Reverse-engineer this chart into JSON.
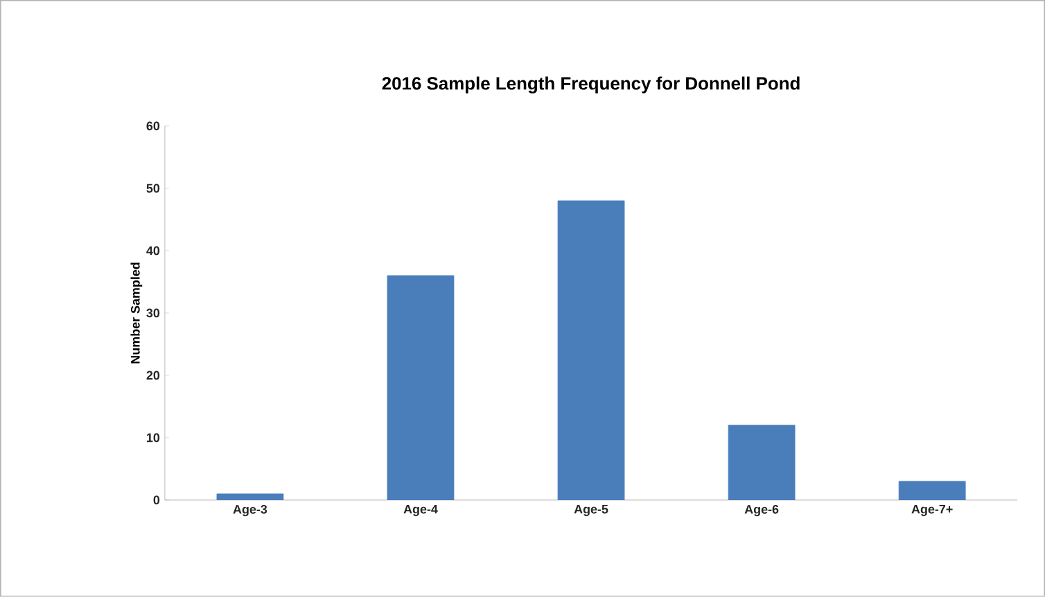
{
  "chart_data": {
    "type": "bar",
    "title": "2016 Sample Length Frequency for Donnell Pond",
    "ylabel": "Number Sampled",
    "categories": [
      "Age-3",
      "Age-4",
      "Age-5",
      "Age-6",
      "Age-7+"
    ],
    "values": [
      1,
      36,
      48,
      12,
      3
    ],
    "color": "#4a7ebb",
    "ylim": [
      0,
      60
    ],
    "yticks": [
      0,
      10,
      20,
      30,
      40,
      50,
      60
    ],
    "grid": false
  }
}
